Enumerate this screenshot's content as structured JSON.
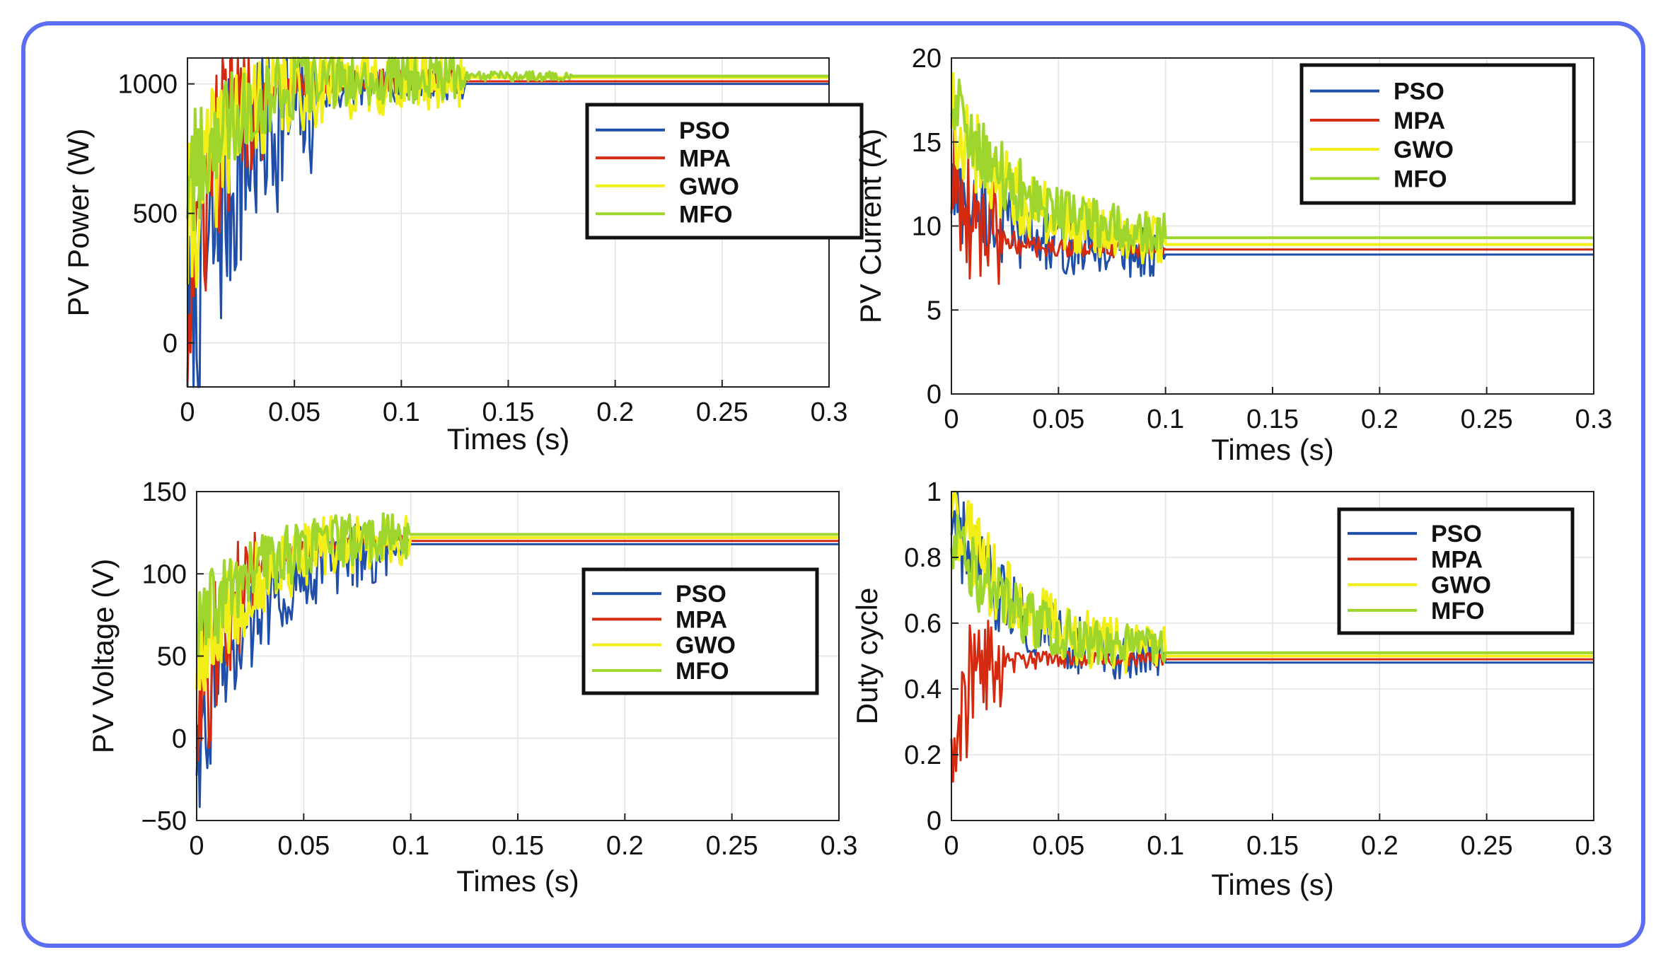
{
  "chart_data": [
    {
      "id": "pv_power",
      "type": "line",
      "ylabel": "PV Power (W)",
      "xlabel": "Times (s)",
      "xlim": [
        0,
        0.3
      ],
      "ylim": [
        -170,
        1100
      ],
      "xticks": [
        0,
        0.05,
        0.1,
        0.15,
        0.2,
        0.25,
        0.3
      ],
      "xtick_labels": [
        "0",
        "0.05",
        "0.1",
        "0.15",
        "0.2",
        "0.25",
        "0.3"
      ],
      "yticks": [
        0,
        500,
        1000
      ],
      "ytick_labels": [
        "0",
        "500",
        "1000"
      ],
      "legend_position": "right-center",
      "settle_time": 0.13,
      "series": [
        {
          "name": "PSO",
          "color": "#1f4fa8",
          "final": 1000,
          "start": -120,
          "amp": 600,
          "tau": 0.02,
          "noise_end": 0.06
        },
        {
          "name": "MPA",
          "color": "#d42a10",
          "final": 1010,
          "start": 100,
          "amp": 500,
          "tau": 0.012,
          "noise_end": 0.035
        },
        {
          "name": "GWO",
          "color": "#f2ee18",
          "final": 1025,
          "start": 400,
          "amp": 350,
          "tau": 0.018,
          "noise_end": 0.13
        },
        {
          "name": "MFO",
          "color": "#9ed62e",
          "final": 1030,
          "start": 600,
          "amp": 250,
          "tau": 0.02,
          "noise_end": 0.18
        }
      ]
    },
    {
      "id": "pv_current",
      "type": "line",
      "ylabel": "PV Current (A)",
      "xlabel": "Times (s)",
      "xlim": [
        0,
        0.3
      ],
      "ylim": [
        0,
        20
      ],
      "xticks": [
        0,
        0.05,
        0.1,
        0.15,
        0.2,
        0.25,
        0.3
      ],
      "xtick_labels": [
        "0",
        "0.05",
        "0.1",
        "0.15",
        "0.2",
        "0.25",
        "0.3"
      ],
      "yticks": [
        0,
        5,
        10,
        15,
        20
      ],
      "ytick_labels": [
        "0",
        "5",
        "10",
        "15",
        "20"
      ],
      "legend_position": "top-right",
      "settle_time": 0.1,
      "series": [
        {
          "name": "PSO",
          "color": "#1f4fa8",
          "final": 8.3,
          "start": 12,
          "amp": 3,
          "tau": 0.03,
          "noise_end": 0.1
        },
        {
          "name": "MPA",
          "color": "#d42a10",
          "final": 8.6,
          "start": 13,
          "amp": 5,
          "tau": 0.012,
          "noise_end": 0.025
        },
        {
          "name": "GWO",
          "color": "#f2ee18",
          "final": 8.9,
          "start": 17,
          "amp": 3,
          "tau": 0.03,
          "noise_end": 0.1
        },
        {
          "name": "MFO",
          "color": "#9ed62e",
          "final": 9.3,
          "start": 17.5,
          "amp": 2.5,
          "tau": 0.03,
          "noise_end": 0.1
        }
      ]
    },
    {
      "id": "pv_voltage",
      "type": "line",
      "ylabel": "PV Voltage (V)",
      "xlabel": "Times (s)",
      "xlim": [
        0,
        0.3
      ],
      "ylim": [
        -50,
        150
      ],
      "xticks": [
        0,
        0.05,
        0.1,
        0.15,
        0.2,
        0.25,
        0.3
      ],
      "xtick_labels": [
        "0",
        "0.05",
        "0.1",
        "0.15",
        "0.2",
        "0.25",
        "0.3"
      ],
      "yticks": [
        -50,
        0,
        50,
        100,
        150
      ],
      "ytick_labels": [
        "−50",
        "0",
        "50",
        "100",
        "150"
      ],
      "legend_position": "right-center",
      "settle_time": 0.1,
      "series": [
        {
          "name": "PSO",
          "color": "#1f4fa8",
          "final": 118,
          "start": -10,
          "amp": 40,
          "tau": 0.025,
          "noise_end": 0.09
        },
        {
          "name": "MPA",
          "color": "#d42a10",
          "final": 120,
          "start": 10,
          "amp": 50,
          "tau": 0.018,
          "noise_end": 0.03
        },
        {
          "name": "GWO",
          "color": "#f2ee18",
          "final": 122,
          "start": 40,
          "amp": 35,
          "tau": 0.025,
          "noise_end": 0.1
        },
        {
          "name": "MFO",
          "color": "#9ed62e",
          "final": 124,
          "start": 60,
          "amp": 30,
          "tau": 0.025,
          "noise_end": 0.1
        }
      ]
    },
    {
      "id": "duty_cycle",
      "type": "line",
      "ylabel": "Duty cycle",
      "xlabel": "Times (s)",
      "xlim": [
        0,
        0.3
      ],
      "ylim": [
        0,
        1
      ],
      "xticks": [
        0,
        0.05,
        0.1,
        0.15,
        0.2,
        0.25,
        0.3
      ],
      "xtick_labels": [
        "0",
        "0.05",
        "0.1",
        "0.15",
        "0.2",
        "0.25",
        "0.3"
      ],
      "yticks": [
        0,
        0.2,
        0.4,
        0.6,
        0.8,
        1
      ],
      "ytick_labels": [
        "0",
        "0.2",
        "0.4",
        "0.6",
        "0.8",
        "1"
      ],
      "legend_position": "top-right",
      "settle_time": 0.1,
      "series": [
        {
          "name": "PSO",
          "color": "#1f4fa8",
          "final": 0.48,
          "start": 0.9,
          "amp": 0.15,
          "tau": 0.03,
          "noise_end": 0.1
        },
        {
          "name": "MPA",
          "color": "#d42a10",
          "final": 0.49,
          "start": 0.3,
          "amp": 0.25,
          "tau": 0.01,
          "noise_end": 0.025
        },
        {
          "name": "GWO",
          "color": "#f2ee18",
          "final": 0.5,
          "start": 0.95,
          "amp": 0.15,
          "tau": 0.03,
          "noise_end": 0.1
        },
        {
          "name": "MFO",
          "color": "#9ed62e",
          "final": 0.51,
          "start": 0.85,
          "amp": 0.12,
          "tau": 0.03,
          "noise_end": 0.1
        }
      ]
    }
  ]
}
